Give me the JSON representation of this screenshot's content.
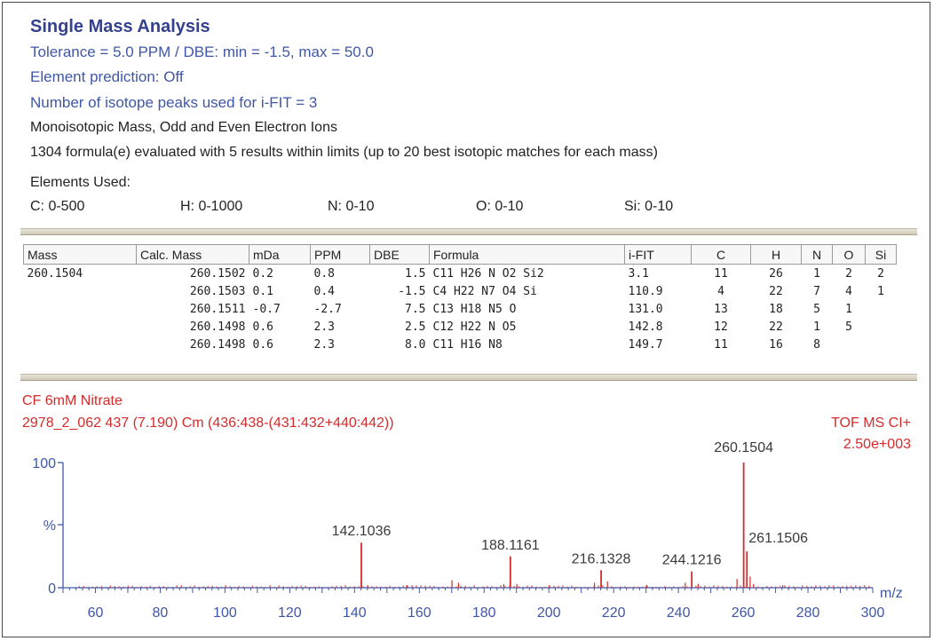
{
  "header": {
    "title": "Single Mass Analysis",
    "tolerance_line": "Tolerance = 5.0 PPM   /   DBE: min = -1.5, max = 50.0",
    "element_prediction": "Element prediction: Off",
    "isotope_peaks": "Number of isotope peaks used for i-FIT = 3",
    "ion_type": "Monoisotopic Mass, Odd and Even Electron Ions",
    "evaluation": "1304 formula(e) evaluated with 5 results within limits (up to 20 best isotopic matches for each mass)",
    "elements_label": "Elements Used:",
    "elements": [
      "C: 0-500",
      "H: 0-1000",
      "N: 0-10",
      "O: 0-10",
      "Si: 0-10"
    ]
  },
  "table": {
    "columns": [
      "Mass",
      "Calc. Mass",
      "mDa",
      "PPM",
      "DBE",
      "Formula",
      "i-FIT",
      "C",
      "H",
      "N",
      "O",
      "Si"
    ],
    "rows": [
      [
        "260.1504",
        "260.1502",
        "0.2",
        "0.8",
        "1.5",
        "C11 H26 N O2 Si2",
        "3.1",
        "11",
        "26",
        "1",
        "2",
        "2"
      ],
      [
        "",
        "260.1503",
        "0.1",
        "0.4",
        "-1.5",
        "C4 H22 N7 O4 Si",
        "110.9",
        "4",
        "22",
        "7",
        "4",
        "1"
      ],
      [
        "",
        "260.1511",
        "-0.7",
        "-2.7",
        "7.5",
        "C13 H18 N5 O",
        "131.0",
        "13",
        "18",
        "5",
        "1",
        ""
      ],
      [
        "",
        "260.1498",
        "0.6",
        "2.3",
        "2.5",
        "C12 H22 N O5",
        "142.8",
        "12",
        "22",
        "1",
        "5",
        ""
      ],
      [
        "",
        "260.1498",
        "0.6",
        "2.3",
        "8.0",
        "C11 H16 N8",
        "149.7",
        "11",
        "16",
        "8",
        "",
        ""
      ]
    ]
  },
  "spectrum": {
    "sample": "CF 6mM Nitrate",
    "scan": "2978_2_062 437 (7.190) Cm (436:438-(431:432+440:442))",
    "mode": "TOF MS CI+",
    "intensity": "2.50e+003",
    "y_ticks": [
      "100",
      "%",
      "0"
    ],
    "x_label": "m/z"
  },
  "chart_data": {
    "type": "bar",
    "xlabel": "m/z",
    "ylabel": "%",
    "xlim": [
      50,
      300
    ],
    "ylim": [
      0,
      100
    ],
    "x_ticks": [
      60,
      80,
      100,
      120,
      140,
      160,
      180,
      200,
      220,
      240,
      260,
      280,
      300
    ],
    "labeled_peaks": [
      {
        "x": 142.1036,
        "y": 36,
        "label": "142.1036"
      },
      {
        "x": 188.1161,
        "y": 25,
        "label": "188.1161"
      },
      {
        "x": 216.1328,
        "y": 14,
        "label": "216.1328"
      },
      {
        "x": 244.1216,
        "y": 13,
        "label": "244.1216"
      },
      {
        "x": 260.1504,
        "y": 100,
        "label": "260.1504"
      },
      {
        "x": 261.1506,
        "y": 29,
        "label": "261.1506"
      }
    ],
    "minor_peaks": [
      {
        "x": 170.1,
        "y": 6
      },
      {
        "x": 172.1,
        "y": 4
      },
      {
        "x": 186.1,
        "y": 3
      },
      {
        "x": 190.1,
        "y": 3
      },
      {
        "x": 214.1,
        "y": 4
      },
      {
        "x": 218.1,
        "y": 5
      },
      {
        "x": 242.1,
        "y": 4
      },
      {
        "x": 246.1,
        "y": 3
      },
      {
        "x": 258.1,
        "y": 7
      },
      {
        "x": 262.15,
        "y": 9
      },
      {
        "x": 263.2,
        "y": 3
      },
      {
        "x": 144.1,
        "y": 2
      },
      {
        "x": 156.1,
        "y": 2
      },
      {
        "x": 200.1,
        "y": 2
      },
      {
        "x": 230.1,
        "y": 2
      },
      {
        "x": 272.2,
        "y": 2
      }
    ],
    "colors": {
      "peaks": "#d42b2b",
      "axes": "#3f57a6"
    }
  }
}
